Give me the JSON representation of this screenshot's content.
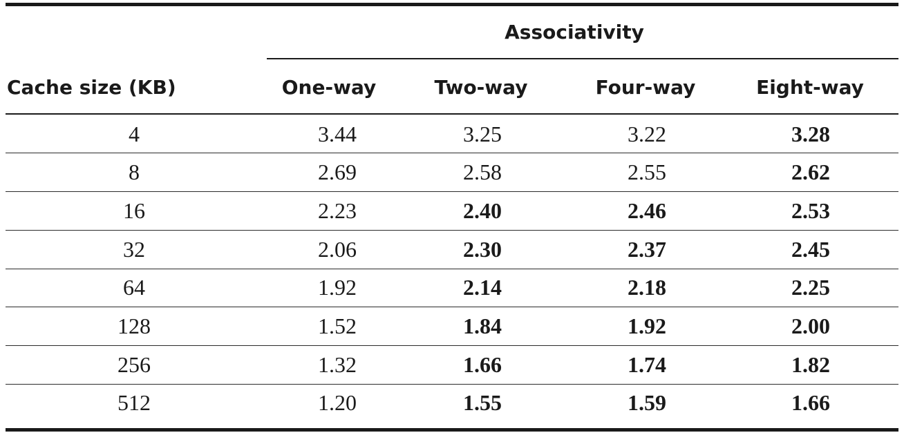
{
  "table": {
    "group_header": "Associativity",
    "row_header": "Cache size (KB)",
    "columns": [
      "One-way",
      "Two-way",
      "Four-way",
      "Eight-way"
    ],
    "rows": [
      {
        "size": "4",
        "values": [
          "3.44",
          "3.25",
          "3.22",
          "3.28"
        ],
        "bold": [
          false,
          false,
          false,
          true
        ]
      },
      {
        "size": "8",
        "values": [
          "2.69",
          "2.58",
          "2.55",
          "2.62"
        ],
        "bold": [
          false,
          false,
          false,
          true
        ]
      },
      {
        "size": "16",
        "values": [
          "2.23",
          "2.40",
          "2.46",
          "2.53"
        ],
        "bold": [
          false,
          true,
          true,
          true
        ]
      },
      {
        "size": "32",
        "values": [
          "2.06",
          "2.30",
          "2.37",
          "2.45"
        ],
        "bold": [
          false,
          true,
          true,
          true
        ]
      },
      {
        "size": "64",
        "values": [
          "1.92",
          "2.14",
          "2.18",
          "2.25"
        ],
        "bold": [
          false,
          true,
          true,
          true
        ]
      },
      {
        "size": "128",
        "values": [
          "1.52",
          "1.84",
          "1.92",
          "2.00"
        ],
        "bold": [
          false,
          true,
          true,
          true
        ]
      },
      {
        "size": "256",
        "values": [
          "1.32",
          "1.66",
          "1.74",
          "1.82"
        ],
        "bold": [
          false,
          true,
          true,
          true
        ]
      },
      {
        "size": "512",
        "values": [
          "1.20",
          "1.55",
          "1.59",
          "1.66"
        ],
        "bold": [
          false,
          true,
          true,
          true
        ]
      }
    ]
  }
}
